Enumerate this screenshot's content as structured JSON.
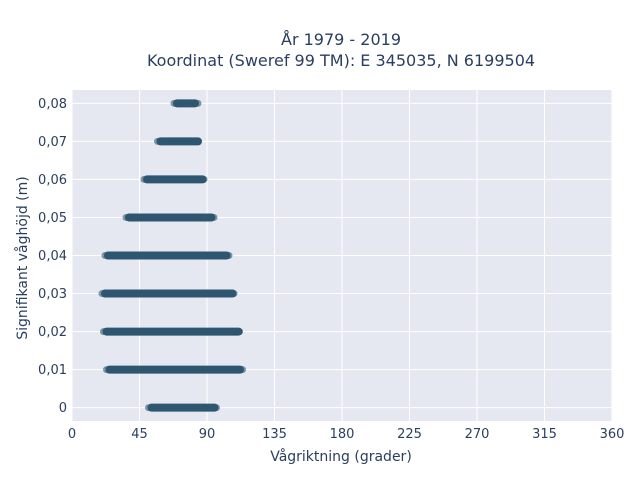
{
  "chart_data": {
    "type": "scatter",
    "title_line1": "År 1979 - 2019",
    "title_line2": "Koordinat (Sweref 99 TM): E 345035, N 6199504",
    "xlabel": "Vågriktning (grader)",
    "ylabel": "Signifikant våghöjd (m)",
    "xlim": [
      0,
      360
    ],
    "ylim": [
      -0.0035,
      0.0835
    ],
    "x_ticks": [
      0,
      45,
      90,
      135,
      180,
      225,
      270,
      315,
      360
    ],
    "y_ticks": [
      0,
      0.01,
      0.02,
      0.03,
      0.04,
      0.05,
      0.06,
      0.07,
      0.08
    ],
    "x_tick_labels": [
      "0",
      "45",
      "90",
      "135",
      "180",
      "225",
      "270",
      "315",
      "360"
    ],
    "y_tick_labels": [
      "0",
      "0,01",
      "0,02",
      "0,03",
      "0,04",
      "0,05",
      "0,06",
      "0,07",
      "0,08"
    ],
    "grid": true,
    "marker_color": "#2f5670",
    "plot_bg": "#e5e8f0",
    "bands": [
      {
        "y": 0.0,
        "x_min": 51,
        "x_max": 97
      },
      {
        "y": 0.01,
        "x_min": 23,
        "x_max": 114
      },
      {
        "y": 0.02,
        "x_min": 21,
        "x_max": 113
      },
      {
        "y": 0.03,
        "x_min": 20,
        "x_max": 109
      },
      {
        "y": 0.04,
        "x_min": 22,
        "x_max": 105
      },
      {
        "y": 0.05,
        "x_min": 36,
        "x_max": 95
      },
      {
        "y": 0.06,
        "x_min": 48,
        "x_max": 89
      },
      {
        "y": 0.07,
        "x_min": 57,
        "x_max": 86
      },
      {
        "y": 0.08,
        "x_min": 68,
        "x_max": 84
      }
    ]
  }
}
